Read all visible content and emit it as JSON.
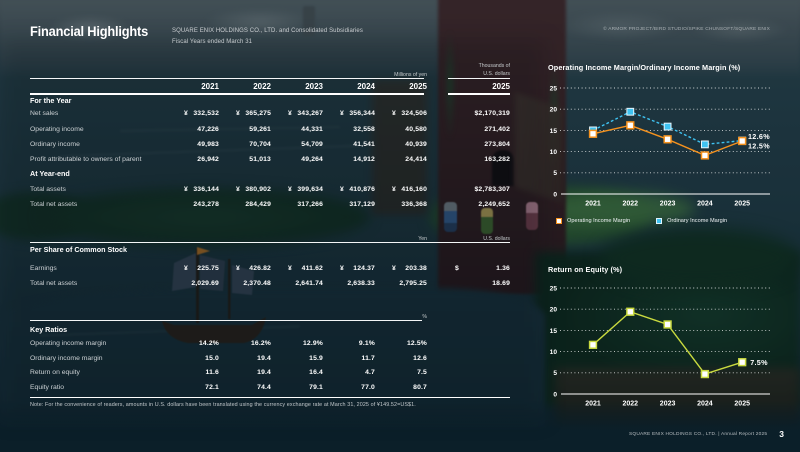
{
  "header": {
    "title": "Financial Highlights",
    "subtitle_line1": "SQUARE ENIX HOLDINGS CO., LTD. and Consolidated Subsidiaries",
    "subtitle_line2": "Fiscal Years ended March 31",
    "copyright": "© ARMOR PROJECT/BIRD STUDIO/SPIKE CHUNSOFT/SQUARE ENIX"
  },
  "table": {
    "unit_millions": "Millions of yen",
    "unit_thousands_1": "Thousands of",
    "unit_thousands_2": "U.S. dollars",
    "years": [
      "2021",
      "2022",
      "2023",
      "2024",
      "2025",
      "2025"
    ],
    "fy": {
      "heading": "For the Year",
      "rows": [
        {
          "label": "Net sales",
          "cells": [
            {
              "s": "¥",
              "v": "332,532"
            },
            {
              "s": "¥",
              "v": "365,275"
            },
            {
              "s": "¥",
              "v": "343,267"
            },
            {
              "s": "¥",
              "v": "356,344"
            },
            {
              "s": "¥",
              "v": "324,506"
            },
            {
              "s": "",
              "v": "$2,170,319"
            }
          ]
        },
        {
          "label": "Operating income",
          "cells": [
            {
              "s": "",
              "v": "47,226"
            },
            {
              "s": "",
              "v": "59,261"
            },
            {
              "s": "",
              "v": "44,331"
            },
            {
              "s": "",
              "v": "32,558"
            },
            {
              "s": "",
              "v": "40,580"
            },
            {
              "s": "",
              "v": "271,402"
            }
          ]
        },
        {
          "label": "Ordinary income",
          "cells": [
            {
              "s": "",
              "v": "49,983"
            },
            {
              "s": "",
              "v": "70,704"
            },
            {
              "s": "",
              "v": "54,709"
            },
            {
              "s": "",
              "v": "41,541"
            },
            {
              "s": "",
              "v": "40,939"
            },
            {
              "s": "",
              "v": "273,804"
            }
          ]
        },
        {
          "label": "Profit attributable to owners of parent",
          "cells": [
            {
              "s": "",
              "v": "26,942"
            },
            {
              "s": "",
              "v": "51,013"
            },
            {
              "s": "",
              "v": "49,264"
            },
            {
              "s": "",
              "v": "14,912"
            },
            {
              "s": "",
              "v": "24,414"
            },
            {
              "s": "",
              "v": "163,282"
            }
          ]
        }
      ]
    },
    "ye": {
      "heading": "At Year-end",
      "rows": [
        {
          "label": "Total assets",
          "cells": [
            {
              "s": "¥",
              "v": "336,144"
            },
            {
              "s": "¥",
              "v": "380,902"
            },
            {
              "s": "¥",
              "v": "399,634"
            },
            {
              "s": "¥",
              "v": "410,876"
            },
            {
              "s": "¥",
              "v": "416,160"
            },
            {
              "s": "",
              "v": "$2,783,307"
            }
          ]
        },
        {
          "label": "Total net assets",
          "cells": [
            {
              "s": "",
              "v": "243,278"
            },
            {
              "s": "",
              "v": "284,429"
            },
            {
              "s": "",
              "v": "317,266"
            },
            {
              "s": "",
              "v": "317,129"
            },
            {
              "s": "",
              "v": "336,368"
            },
            {
              "s": "",
              "v": "2,249,652"
            }
          ]
        }
      ]
    },
    "ps": {
      "unit_yen": "Yen",
      "unit_usd": "U.S. dollars",
      "heading": "Per Share of Common Stock",
      "rows": [
        {
          "label": "Earnings",
          "cells": [
            {
              "s": "¥",
              "v": "225.75"
            },
            {
              "s": "¥",
              "v": "426.82"
            },
            {
              "s": "¥",
              "v": "411.62"
            },
            {
              "s": "¥",
              "v": "124.37"
            },
            {
              "s": "¥",
              "v": "203.38"
            },
            {
              "s": "$",
              "v": "1.36"
            }
          ]
        },
        {
          "label": "Total net assets",
          "cells": [
            {
              "s": "",
              "v": "2,029.69"
            },
            {
              "s": "",
              "v": "2,370.48"
            },
            {
              "s": "",
              "v": "2,641.74"
            },
            {
              "s": "",
              "v": "2,638.33"
            },
            {
              "s": "",
              "v": "2,795.25"
            },
            {
              "s": "",
              "v": "18.69"
            }
          ]
        }
      ]
    },
    "kr": {
      "unit_pct": "%",
      "heading": "Key Ratios",
      "rows": [
        {
          "label": "Operating income margin",
          "cells": [
            {
              "s": "",
              "v": "14.2%"
            },
            {
              "s": "",
              "v": "16.2%"
            },
            {
              "s": "",
              "v": "12.9%"
            },
            {
              "s": "",
              "v": "9.1%"
            },
            {
              "s": "",
              "v": "12.5%"
            },
            {
              "s": "",
              "v": ""
            }
          ]
        },
        {
          "label": "Ordinary income margin",
          "cells": [
            {
              "s": "",
              "v": "15.0"
            },
            {
              "s": "",
              "v": "19.4"
            },
            {
              "s": "",
              "v": "15.9"
            },
            {
              "s": "",
              "v": "11.7"
            },
            {
              "s": "",
              "v": "12.6"
            },
            {
              "s": "",
              "v": ""
            }
          ]
        },
        {
          "label": "Return on equity",
          "cells": [
            {
              "s": "",
              "v": "11.6"
            },
            {
              "s": "",
              "v": "19.4"
            },
            {
              "s": "",
              "v": "16.4"
            },
            {
              "s": "",
              "v": "4.7"
            },
            {
              "s": "",
              "v": "7.5"
            },
            {
              "s": "",
              "v": ""
            }
          ]
        },
        {
          "label": "Equity ratio",
          "cells": [
            {
              "s": "",
              "v": "72.1"
            },
            {
              "s": "",
              "v": "74.4"
            },
            {
              "s": "",
              "v": "79.1"
            },
            {
              "s": "",
              "v": "77.0"
            },
            {
              "s": "",
              "v": "80.7"
            },
            {
              "s": "",
              "v": ""
            }
          ]
        }
      ]
    },
    "note": "Note: For the convenience of readers, amounts in U.S. dollars have been translated using the currency exchange rate at March 31, 2025 of ¥149.52=US$1."
  },
  "chart_data": [
    {
      "type": "line",
      "title": "Operating Income Margin/Ordinary Income Margin (%)",
      "categories": [
        "2021",
        "2022",
        "2023",
        "2024",
        "2025"
      ],
      "series": [
        {
          "name": "Operating Income Margin",
          "values": [
            14.2,
            16.2,
            12.9,
            9.1,
            12.5
          ],
          "color": "#f5921e",
          "marker": "hollow",
          "dashed": false,
          "end_label": "12.5%"
        },
        {
          "name": "Ordinary Income Margin",
          "values": [
            15.0,
            19.4,
            15.9,
            11.7,
            12.6
          ],
          "color": "#3fc3f2",
          "marker": "solid",
          "dashed": true,
          "end_label": "12.6%"
        }
      ],
      "ylim": [
        0,
        25
      ],
      "ytick": 5,
      "grid": true,
      "legend_position": "bottom"
    },
    {
      "type": "line",
      "title": "Return on Equity (%)",
      "categories": [
        "2021",
        "2022",
        "2023",
        "2024",
        "2025"
      ],
      "series": [
        {
          "name": "Return on Equity",
          "values": [
            11.6,
            19.4,
            16.4,
            4.7,
            7.5
          ],
          "color": "#c9da3f",
          "marker": "hollow",
          "dashed": false,
          "end_label": "7.5%"
        }
      ],
      "ylim": [
        0,
        25
      ],
      "ytick": 5,
      "grid": true,
      "legend_position": "none"
    }
  ],
  "footer": {
    "text": "SQUARE ENIX HOLDINGS CO., LTD.   |   Annual Report 2025",
    "page": "3"
  }
}
